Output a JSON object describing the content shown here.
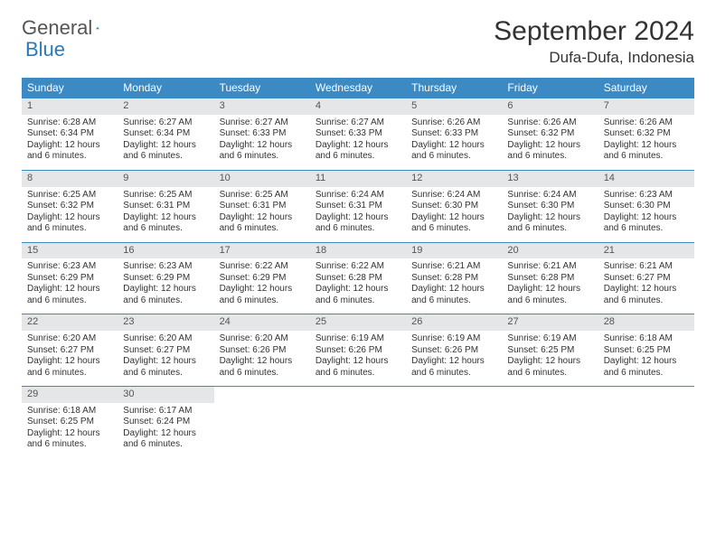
{
  "logo": {
    "text1": "General",
    "text2": "Blue"
  },
  "title": "September 2024",
  "location": "Dufa-Dufa, Indonesia",
  "colors": {
    "headerBlue": "#3b8ac4",
    "dayNumBg": "#e4e6e8",
    "borderBlue": "#3b8ac4",
    "logoBlue": "#2a7ab9"
  },
  "weekdays": [
    "Sunday",
    "Monday",
    "Tuesday",
    "Wednesday",
    "Thursday",
    "Friday",
    "Saturday"
  ],
  "daylight": "Daylight: 12 hours and 6 minutes.",
  "days": [
    {
      "n": "1",
      "sr": "6:28 AM",
      "ss": "6:34 PM"
    },
    {
      "n": "2",
      "sr": "6:27 AM",
      "ss": "6:34 PM"
    },
    {
      "n": "3",
      "sr": "6:27 AM",
      "ss": "6:33 PM"
    },
    {
      "n": "4",
      "sr": "6:27 AM",
      "ss": "6:33 PM"
    },
    {
      "n": "5",
      "sr": "6:26 AM",
      "ss": "6:33 PM"
    },
    {
      "n": "6",
      "sr": "6:26 AM",
      "ss": "6:32 PM"
    },
    {
      "n": "7",
      "sr": "6:26 AM",
      "ss": "6:32 PM"
    },
    {
      "n": "8",
      "sr": "6:25 AM",
      "ss": "6:32 PM"
    },
    {
      "n": "9",
      "sr": "6:25 AM",
      "ss": "6:31 PM"
    },
    {
      "n": "10",
      "sr": "6:25 AM",
      "ss": "6:31 PM"
    },
    {
      "n": "11",
      "sr": "6:24 AM",
      "ss": "6:31 PM"
    },
    {
      "n": "12",
      "sr": "6:24 AM",
      "ss": "6:30 PM"
    },
    {
      "n": "13",
      "sr": "6:24 AM",
      "ss": "6:30 PM"
    },
    {
      "n": "14",
      "sr": "6:23 AM",
      "ss": "6:30 PM"
    },
    {
      "n": "15",
      "sr": "6:23 AM",
      "ss": "6:29 PM"
    },
    {
      "n": "16",
      "sr": "6:23 AM",
      "ss": "6:29 PM"
    },
    {
      "n": "17",
      "sr": "6:22 AM",
      "ss": "6:29 PM"
    },
    {
      "n": "18",
      "sr": "6:22 AM",
      "ss": "6:28 PM"
    },
    {
      "n": "19",
      "sr": "6:21 AM",
      "ss": "6:28 PM"
    },
    {
      "n": "20",
      "sr": "6:21 AM",
      "ss": "6:28 PM"
    },
    {
      "n": "21",
      "sr": "6:21 AM",
      "ss": "6:27 PM"
    },
    {
      "n": "22",
      "sr": "6:20 AM",
      "ss": "6:27 PM"
    },
    {
      "n": "23",
      "sr": "6:20 AM",
      "ss": "6:27 PM"
    },
    {
      "n": "24",
      "sr": "6:20 AM",
      "ss": "6:26 PM"
    },
    {
      "n": "25",
      "sr": "6:19 AM",
      "ss": "6:26 PM"
    },
    {
      "n": "26",
      "sr": "6:19 AM",
      "ss": "6:26 PM"
    },
    {
      "n": "27",
      "sr": "6:19 AM",
      "ss": "6:25 PM"
    },
    {
      "n": "28",
      "sr": "6:18 AM",
      "ss": "6:25 PM"
    },
    {
      "n": "29",
      "sr": "6:18 AM",
      "ss": "6:25 PM"
    },
    {
      "n": "30",
      "sr": "6:17 AM",
      "ss": "6:24 PM"
    }
  ],
  "labels": {
    "sunrise": "Sunrise:",
    "sunset": "Sunset:"
  }
}
